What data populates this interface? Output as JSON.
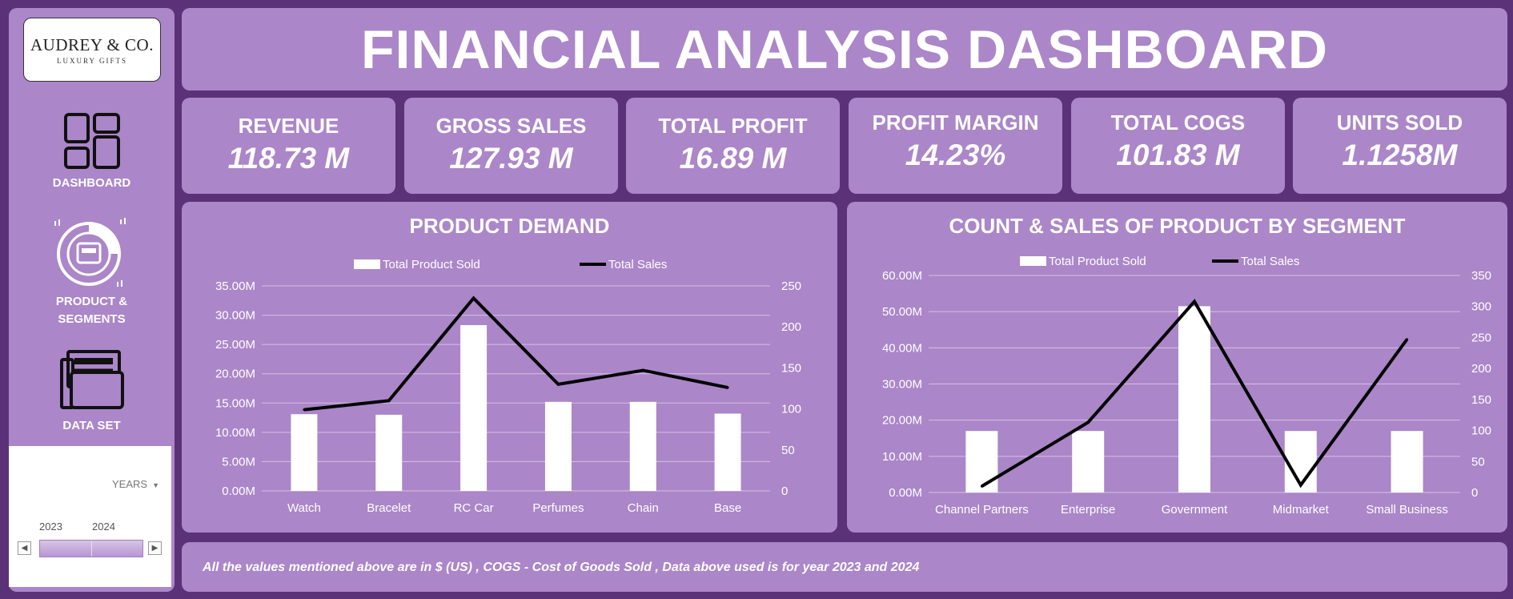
{
  "title": "FINANCIAL ANALYSIS DASHBOARD",
  "logo": {
    "name": "AUDREY & CO.",
    "tagline": "LUXURY GIFTS"
  },
  "nav": {
    "dashboard": "DASHBOARD",
    "product_segments_1": "PRODUCT &",
    "product_segments_2": "SEGMENTS",
    "data_set": "DATA SET"
  },
  "slicer": {
    "header": "YEARS",
    "years": [
      "2023",
      "2024"
    ]
  },
  "kpis": [
    {
      "label": "REVENUE",
      "value": "118.73 M"
    },
    {
      "label": "GROSS SALES",
      "value": "127.93 M"
    },
    {
      "label": "TOTAL PROFIT",
      "value": "16.89 M"
    },
    {
      "label": "PROFIT MARGIN",
      "value": "14.23%"
    },
    {
      "label": "TOTAL COGS",
      "value": "101.83 M"
    },
    {
      "label": "UNITS SOLD",
      "value": "1.1258M"
    }
  ],
  "colors": {
    "background": "#5b3277",
    "panel": "#ab86c8",
    "bar": "#ffffff",
    "line": "#000000",
    "text": "#ffffff"
  },
  "chart_data": [
    {
      "type": "bar",
      "title": "PRODUCT DEMAND",
      "categories": [
        "Watch",
        "Bracelet",
        "RC Car",
        "Perfumes",
        "Chain",
        "Base"
      ],
      "series": [
        {
          "name": "Total Product Sold",
          "type": "bar",
          "axis": "left",
          "values": [
            13.1,
            13.0,
            28.3,
            15.2,
            15.2,
            13.2
          ]
        },
        {
          "name": "Total Sales",
          "type": "line",
          "axis": "right",
          "values": [
            99,
            110,
            235,
            130,
            147,
            126
          ]
        }
      ],
      "y_left": {
        "min": 0,
        "max": 35,
        "ticks": [
          "0.00M",
          "5.00M",
          "10.00M",
          "15.00M",
          "20.00M",
          "25.00M",
          "30.00M",
          "35.00M"
        ]
      },
      "y_right": {
        "min": 0,
        "max": 250,
        "ticks": [
          "0",
          "50",
          "100",
          "150",
          "200",
          "250"
        ]
      },
      "legend": "top",
      "grid": true
    },
    {
      "type": "bar",
      "title": "COUNT & SALES OF PRODUCT BY SEGMENT",
      "categories": [
        "Channel Partners",
        "Enterprise",
        "Government",
        "Midmarket",
        "Small Business"
      ],
      "series": [
        {
          "name": "Total Product Sold",
          "type": "bar",
          "axis": "left",
          "values": [
            17.0,
            17.0,
            51.5,
            17.0,
            17.0
          ]
        },
        {
          "name": "Total Sales",
          "type": "line",
          "axis": "right",
          "values": [
            10,
            113,
            308,
            12,
            247
          ]
        }
      ],
      "y_left": {
        "min": 0,
        "max": 60,
        "ticks": [
          "0.00M",
          "10.00M",
          "20.00M",
          "30.00M",
          "40.00M",
          "50.00M",
          "60.00M"
        ]
      },
      "y_right": {
        "min": 0,
        "max": 350,
        "ticks": [
          "0",
          "50",
          "100",
          "150",
          "200",
          "250",
          "300",
          "350"
        ]
      },
      "legend": "top",
      "grid": true
    }
  ],
  "footer": "All the values mentioned above are in $ (US) , COGS - Cost of Goods Sold  , Data above used is for year 2023 and 2024"
}
